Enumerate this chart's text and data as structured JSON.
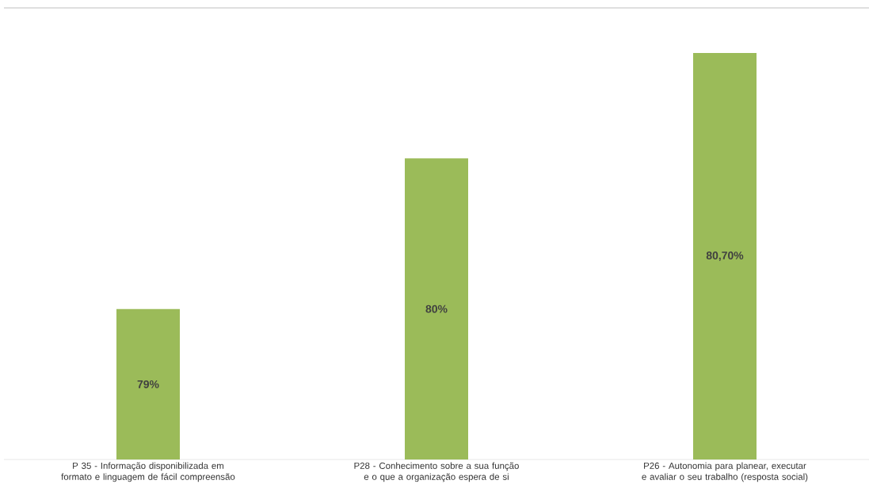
{
  "chart_data": {
    "type": "bar",
    "categories": [
      "P 35 - Informação disponibilizada em formato e linguagem de fácil compreensão",
      "P28 - Conhecimento sobre a sua função e o que a organização espera de si",
      "P26 - Autonomia para planear, executar e avaliar o seu trabalho (resposta social)"
    ],
    "values": [
      79,
      80,
      80.7
    ],
    "value_labels": [
      "79%",
      "80%",
      "80,70%"
    ],
    "color": "#9bbb59",
    "ylim": [
      78,
      81
    ],
    "tick_labels": "x"
  }
}
